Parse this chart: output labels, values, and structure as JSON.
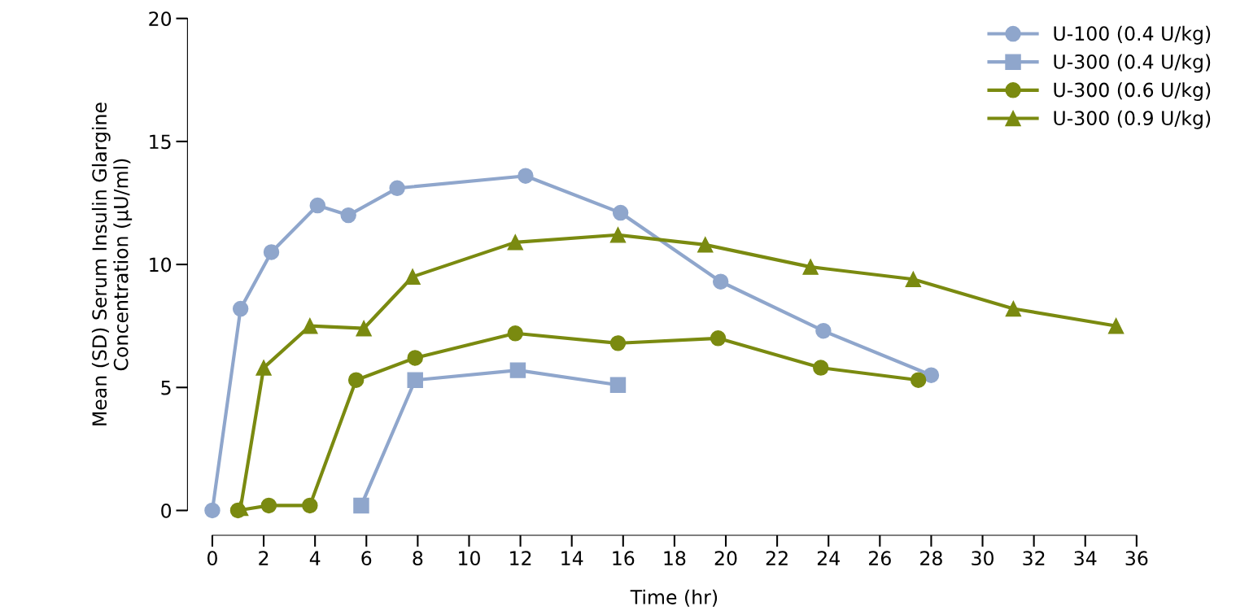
{
  "chart_data": {
    "type": "line",
    "xlabel": "Time (hr)",
    "ylabel": "Mean (SD) Serum Insulin Glargine\nConcentration (μU/ml)",
    "xlim": [
      0,
      36
    ],
    "xticks": [
      0,
      2,
      4,
      6,
      8,
      10,
      12,
      14,
      16,
      18,
      20,
      22,
      24,
      26,
      28,
      30,
      32,
      34,
      36
    ],
    "ylim": [
      0,
      20
    ],
    "yticks": [
      0,
      5,
      10,
      15,
      20
    ],
    "grid": false,
    "legend": "top right",
    "line_style": "solid",
    "series": [
      {
        "name": "U-100 (0.4 U/kg)",
        "color": "#8fa6cc",
        "marker": "circle",
        "x": [
          0,
          1.1,
          2.3,
          4.1,
          5.3,
          7.2,
          12.2,
          15.9,
          19.8,
          23.8,
          28.0
        ],
        "values": [
          0,
          8.2,
          10.5,
          12.4,
          12.0,
          13.1,
          13.6,
          12.1,
          9.3,
          7.3,
          5.5
        ]
      },
      {
        "name": "U-300 (0.4 U/kg)",
        "color": "#8fa6cc",
        "marker": "square",
        "x": [
          5.8,
          7.9,
          11.9,
          15.8
        ],
        "values": [
          0.2,
          5.3,
          5.7,
          5.1
        ]
      },
      {
        "name": "U-300 (0.6 U/kg)",
        "color": "#7a8a10",
        "marker": "circle",
        "x": [
          1,
          2.2,
          3.8,
          5.6,
          7.9,
          11.8,
          15.8,
          19.7,
          23.7,
          27.5
        ],
        "values": [
          0,
          0.2,
          0.2,
          5.3,
          6.2,
          7.2,
          6.8,
          7.0,
          5.8,
          5.3
        ]
      },
      {
        "name": "U-300 (0.9 U/kg)",
        "color": "#7a8a10",
        "marker": "triangle",
        "x": [
          1.1,
          2.0,
          3.8,
          5.9,
          7.8,
          11.8,
          15.8,
          19.2,
          23.3,
          27.3,
          31.2,
          35.2
        ],
        "values": [
          0.1,
          5.8,
          7.5,
          7.4,
          9.5,
          10.9,
          11.2,
          10.8,
          9.9,
          9.4,
          8.2,
          7.5
        ]
      }
    ]
  }
}
